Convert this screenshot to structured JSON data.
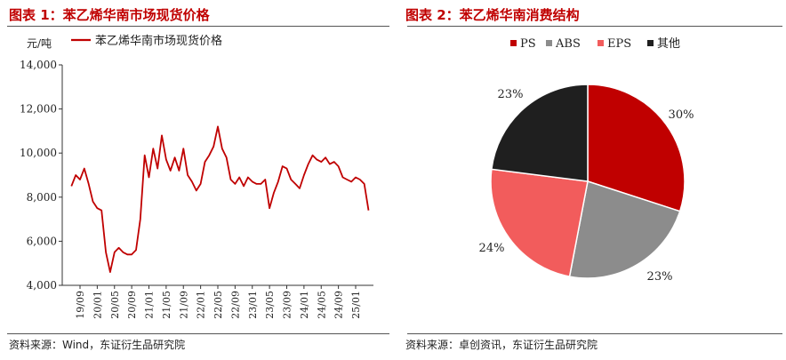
{
  "left": {
    "title": "图表 1：苯乙烯华南市场现货价格",
    "source": "资料来源：Wind，东证衍生品研究院"
  },
  "right": {
    "title": "图表 2：苯乙烯华南消费结构",
    "source": "资料来源：卓创资讯，东证衍生品研究院"
  },
  "colors": {
    "title_red": "#c00000",
    "line": "#c00000"
  },
  "chart_data": [
    {
      "type": "line",
      "ylabel": "元/吨",
      "ylim": [
        4000,
        14000
      ],
      "yticks": [
        4000,
        6000,
        8000,
        10000,
        12000,
        14000
      ],
      "ytick_labels": [
        "4,000",
        "6,000",
        "8,000",
        "10,000",
        "12,000",
        "14,000"
      ],
      "xticks": [
        "19/09",
        "20/01",
        "20/05",
        "20/09",
        "21/01",
        "21/05",
        "21/09",
        "22/01",
        "22/05",
        "22/09",
        "23/01",
        "23/05",
        "23/09",
        "24/01",
        "24/05",
        "24/09",
        "25/01"
      ],
      "legend": "top-left",
      "grid": false,
      "series": [
        {
          "name": "苯乙烯华南市场现货价格",
          "color": "#c00000",
          "x": [
            "2019-07",
            "2019-08",
            "2019-09",
            "2019-10",
            "2019-11",
            "2019-12",
            "2020-01",
            "2020-02",
            "2020-03",
            "2020-04",
            "2020-05",
            "2020-06",
            "2020-07",
            "2020-08",
            "2020-09",
            "2020-10",
            "2020-11",
            "2020-12",
            "2021-01",
            "2021-02",
            "2021-03",
            "2021-04",
            "2021-05",
            "2021-06",
            "2021-07",
            "2021-08",
            "2021-09",
            "2021-10",
            "2021-11",
            "2021-12",
            "2022-01",
            "2022-02",
            "2022-03",
            "2022-04",
            "2022-05",
            "2022-06",
            "2022-07",
            "2022-08",
            "2022-09",
            "2022-10",
            "2022-11",
            "2022-12",
            "2023-01",
            "2023-02",
            "2023-03",
            "2023-04",
            "2023-05",
            "2023-06",
            "2023-07",
            "2023-08",
            "2023-09",
            "2023-10",
            "2023-11",
            "2023-12",
            "2024-01",
            "2024-02",
            "2024-03",
            "2024-04",
            "2024-05",
            "2024-06",
            "2024-07",
            "2024-08",
            "2024-09",
            "2024-10",
            "2024-11",
            "2024-12",
            "2025-01",
            "2025-02",
            "2025-03",
            "2025-04"
          ],
          "values": [
            8500,
            9000,
            8800,
            9300,
            8600,
            7800,
            7500,
            7400,
            5500,
            4600,
            5500,
            5700,
            5500,
            5400,
            5400,
            5600,
            7000,
            9900,
            8900,
            10200,
            9300,
            10800,
            9700,
            9200,
            9800,
            9200,
            10200,
            9000,
            8700,
            8300,
            8600,
            9600,
            9900,
            10300,
            11200,
            10200,
            9800,
            8800,
            8600,
            8900,
            8500,
            8900,
            8700,
            8600,
            8600,
            8800,
            7500,
            8200,
            8700,
            9400,
            9300,
            8800,
            8600,
            8400,
            9000,
            9500,
            9900,
            9700,
            9600,
            9800,
            9500,
            9600,
            9400,
            8900,
            8800,
            8700,
            8900,
            8800,
            8600,
            7400
          ]
        }
      ]
    },
    {
      "type": "pie",
      "legend": "top",
      "slices": [
        {
          "label": "PS",
          "value": 30,
          "text": "30%",
          "color": "#c00000"
        },
        {
          "label": "ABS",
          "value": 23,
          "text": "23%",
          "color": "#8c8c8c"
        },
        {
          "label": "EPS",
          "value": 24,
          "text": "24%",
          "color": "#f25c5c"
        },
        {
          "label": "其他",
          "value": 23,
          "text": "23%",
          "color": "#1f1f1f"
        }
      ]
    }
  ]
}
